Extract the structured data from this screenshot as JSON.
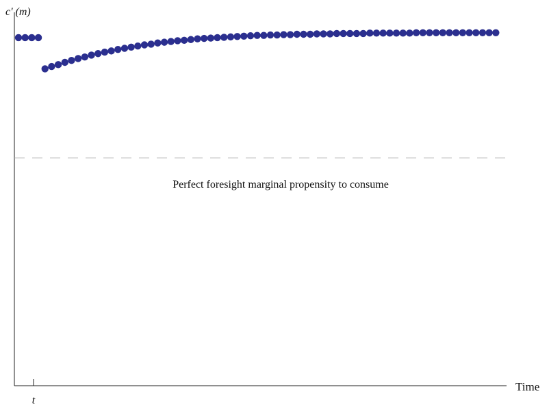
{
  "chart_data": {
    "type": "scatter",
    "ylabel": "c' (m)",
    "xlabel": "Time",
    "x_tick_labels": [
      "t"
    ],
    "annotation": "Perfect foresight marginal propensity to consume",
    "reference_line": {
      "y": 0.6,
      "style": "dashed",
      "color": "#aaaaaa"
    },
    "grid": false,
    "ylim": [
      0,
      1.0
    ],
    "xlim": [
      -1,
      72
    ],
    "point_color": "#2b2f8f",
    "series": [
      {
        "points": [
          [
            -1,
            0.917
          ],
          [
            0,
            0.917
          ],
          [
            1,
            0.917
          ],
          [
            2,
            0.917
          ],
          [
            3,
            0.835
          ],
          [
            4,
            0.841
          ],
          [
            5,
            0.846
          ],
          [
            6,
            0.852
          ],
          [
            7,
            0.857
          ],
          [
            8,
            0.862
          ],
          [
            9,
            0.866
          ],
          [
            10,
            0.871
          ],
          [
            11,
            0.875
          ],
          [
            12,
            0.879
          ],
          [
            13,
            0.882
          ],
          [
            14,
            0.886
          ],
          [
            15,
            0.889
          ],
          [
            16,
            0.892
          ],
          [
            17,
            0.895
          ],
          [
            18,
            0.898
          ],
          [
            19,
            0.9
          ],
          [
            20,
            0.903
          ],
          [
            21,
            0.905
          ],
          [
            22,
            0.907
          ],
          [
            23,
            0.909
          ],
          [
            24,
            0.91
          ],
          [
            25,
            0.912
          ],
          [
            26,
            0.914
          ],
          [
            27,
            0.915
          ],
          [
            28,
            0.916
          ],
          [
            29,
            0.917
          ],
          [
            30,
            0.918
          ],
          [
            31,
            0.919
          ],
          [
            32,
            0.92
          ],
          [
            33,
            0.921
          ],
          [
            34,
            0.922
          ],
          [
            35,
            0.923
          ],
          [
            36,
            0.923
          ],
          [
            37,
            0.924
          ],
          [
            38,
            0.924
          ],
          [
            39,
            0.925
          ],
          [
            40,
            0.925
          ],
          [
            41,
            0.926
          ],
          [
            42,
            0.926
          ],
          [
            43,
            0.926
          ],
          [
            44,
            0.927
          ],
          [
            45,
            0.927
          ],
          [
            46,
            0.927
          ],
          [
            47,
            0.928
          ],
          [
            48,
            0.928
          ],
          [
            49,
            0.928
          ],
          [
            50,
            0.928
          ],
          [
            51,
            0.928
          ],
          [
            52,
            0.929
          ],
          [
            53,
            0.929
          ],
          [
            54,
            0.929
          ],
          [
            55,
            0.929
          ],
          [
            56,
            0.929
          ],
          [
            57,
            0.929
          ],
          [
            58,
            0.929
          ],
          [
            59,
            0.93
          ],
          [
            60,
            0.93
          ],
          [
            61,
            0.93
          ],
          [
            62,
            0.93
          ],
          [
            63,
            0.93
          ],
          [
            64,
            0.93
          ],
          [
            65,
            0.93
          ],
          [
            66,
            0.93
          ],
          [
            67,
            0.93
          ],
          [
            68,
            0.93
          ],
          [
            69,
            0.93
          ],
          [
            70,
            0.93
          ],
          [
            71,
            0.93
          ]
        ]
      }
    ]
  }
}
